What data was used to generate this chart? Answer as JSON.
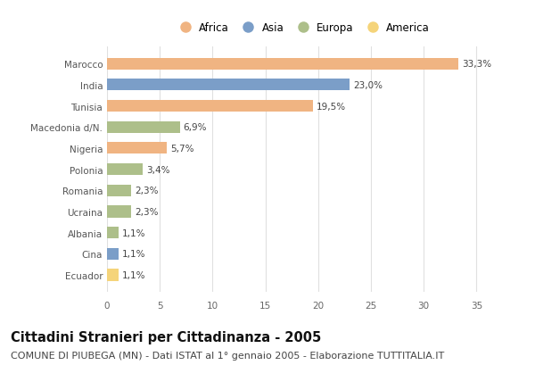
{
  "countries": [
    "Marocco",
    "India",
    "Tunisia",
    "Macedonia d/N.",
    "Nigeria",
    "Polonia",
    "Romania",
    "Ucraina",
    "Albania",
    "Cina",
    "Ecuador"
  ],
  "values": [
    33.3,
    23.0,
    19.5,
    6.9,
    5.7,
    3.4,
    2.3,
    2.3,
    1.1,
    1.1,
    1.1
  ],
  "labels": [
    "33,3%",
    "23,0%",
    "19,5%",
    "6,9%",
    "5,7%",
    "3,4%",
    "2,3%",
    "2,3%",
    "1,1%",
    "1,1%",
    "1,1%"
  ],
  "continents": [
    "Africa",
    "Asia",
    "Africa",
    "Europa",
    "Africa",
    "Europa",
    "Europa",
    "Europa",
    "Europa",
    "Asia",
    "America"
  ],
  "colors": {
    "Africa": "#F0B482",
    "Asia": "#7B9EC8",
    "Europa": "#ADBF8A",
    "America": "#F5D47A"
  },
  "legend_order": [
    "Africa",
    "Asia",
    "Europa",
    "America"
  ],
  "xlim": [
    0,
    37
  ],
  "xticks": [
    0,
    5,
    10,
    15,
    20,
    25,
    30,
    35
  ],
  "title": "Cittadini Stranieri per Cittadinanza - 2005",
  "subtitle": "COMUNE DI PIUBEGA (MN) - Dati ISTAT al 1° gennaio 2005 - Elaborazione TUTTITALIA.IT",
  "bg_color": "#ffffff",
  "grid_color": "#e0e0e0",
  "bar_height": 0.55,
  "title_fontsize": 10.5,
  "subtitle_fontsize": 8,
  "label_fontsize": 7.5,
  "tick_fontsize": 7.5,
  "legend_fontsize": 8.5
}
